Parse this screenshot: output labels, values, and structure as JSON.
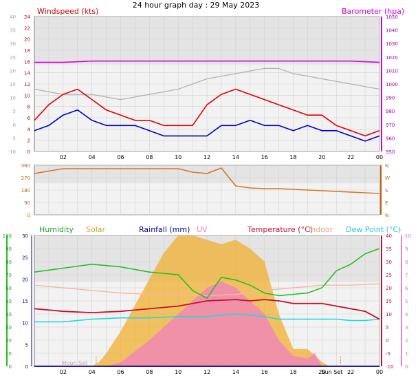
{
  "chart_data": [
    {
      "type": "line",
      "title": "24 hour graph day : 29 May 2023",
      "left_label": "Windspeed (kts)",
      "right_label": "Barometer (hpa)",
      "x_ticks": [
        "02",
        "04",
        "06",
        "08",
        "10",
        "12",
        "14",
        "16",
        "18",
        "20",
        "22",
        "00"
      ],
      "y_left_outer": {
        "range": [
          -10,
          40
        ],
        "ticks": [
          "-10",
          "-5",
          "0",
          "5",
          "10",
          "15",
          "20",
          "25",
          "30",
          "35",
          "40"
        ]
      },
      "y_left_inner": {
        "range": [
          0,
          24
        ],
        "ticks": [
          "0",
          "2",
          "4",
          "6",
          "8",
          "10",
          "12",
          "14",
          "16",
          "18",
          "20",
          "22",
          "24"
        ]
      },
      "y_right": {
        "range": [
          950,
          1050
        ],
        "ticks": [
          "950",
          "960",
          "970",
          "980",
          "990",
          "1000",
          "1010",
          "1020",
          "1030",
          "1040",
          "1050"
        ]
      },
      "series": [
        {
          "color": "#e00000",
          "x": [
            0,
            1,
            2,
            3,
            4,
            5,
            6,
            7,
            8,
            9,
            10,
            11,
            12,
            13,
            14,
            15,
            16,
            17,
            18,
            19,
            20,
            21,
            22,
            23,
            24
          ],
          "y": [
            4,
            7,
            9,
            10,
            8,
            6,
            5,
            4,
            4,
            3,
            3,
            3,
            7,
            9,
            10,
            9,
            8,
            7,
            6,
            5,
            5,
            3,
            2,
            1,
            2
          ]
        },
        {
          "color": "#0000c0",
          "x": [
            0,
            1,
            2,
            3,
            4,
            5,
            6,
            7,
            8,
            9,
            10,
            11,
            12,
            13,
            14,
            15,
            16,
            17,
            18,
            19,
            20,
            21,
            22,
            23,
            24
          ],
          "y": [
            2,
            3,
            5,
            6,
            4,
            3,
            3,
            3,
            2,
            1,
            1,
            1,
            1,
            3,
            3,
            4,
            3,
            3,
            2,
            3,
            2,
            2,
            1,
            0,
            1
          ]
        },
        {
          "color": "#b0b0b0",
          "x": [
            0,
            2,
            4,
            6,
            8,
            10,
            12,
            14,
            16,
            17,
            18,
            20,
            22,
            24
          ],
          "y": [
            10,
            9,
            9,
            8,
            9,
            10,
            12,
            13,
            14,
            14,
            13,
            12,
            11,
            10
          ]
        },
        {
          "color": "#e000e0",
          "x": [
            0,
            2,
            4,
            6,
            8,
            10,
            12,
            14,
            16,
            18,
            20,
            22,
            24
          ],
          "y": [
            1016,
            1016,
            1017,
            1017,
            1017,
            1017,
            1017,
            1017,
            1017,
            1017,
            1017,
            1017,
            1016
          ]
        }
      ]
    },
    {
      "type": "line",
      "y_left": {
        "range": [
          0,
          360
        ],
        "ticks": [
          "0",
          "90",
          "180",
          "270",
          "360"
        ]
      },
      "y_right_ticks": [
        "N",
        "E",
        "S",
        "W",
        "N"
      ],
      "series": [
        {
          "color": "#d07820",
          "x": [
            0,
            2,
            4,
            6,
            8,
            10,
            11,
            12,
            13,
            14,
            15,
            16,
            17,
            18,
            19,
            20,
            21,
            22,
            23,
            24
          ],
          "y": [
            300,
            335,
            335,
            335,
            335,
            335,
            310,
            300,
            340,
            210,
            195,
            190,
            190,
            185,
            180,
            175,
            170,
            165,
            160,
            155
          ]
        }
      ]
    },
    {
      "type": "area",
      "legend": [
        "Humidity",
        "Solar",
        "Rainfall (mm)",
        "UV",
        "Temperature (°C)",
        "Indoor",
        "Dew Point (°C)"
      ],
      "x_ticks": [
        "02",
        "04",
        "06",
        "08",
        "10",
        "12",
        "14",
        "16",
        "18",
        "20",
        "22",
        "00"
      ],
      "x_marks": [
        "Moon Set",
        "Sun Set"
      ],
      "y_humidity": {
        "range": [
          0,
          100
        ],
        "ticks": [
          "0",
          "10",
          "20",
          "30",
          "40",
          "50",
          "60",
          "70",
          "80",
          "90",
          "100"
        ]
      },
      "y_rain": {
        "range": [
          0,
          30
        ],
        "ticks": [
          "0",
          "5",
          "10",
          "15",
          "20",
          "25",
          "30"
        ]
      },
      "y_temp": {
        "range": [
          -10,
          40
        ],
        "ticks": [
          "-10",
          "-5",
          "0",
          "5",
          "10",
          "15",
          "20",
          "25",
          "30",
          "35",
          "40"
        ]
      },
      "y_uv": {
        "range": [
          0,
          10
        ],
        "ticks": [
          "0",
          "1",
          "2",
          "3",
          "4",
          "5",
          "6",
          "7",
          "8",
          "9",
          "10"
        ]
      },
      "series": [
        {
          "name": "Humidity",
          "color": "#20c020",
          "x": [
            0,
            2,
            4,
            6,
            8,
            10,
            11,
            12,
            13,
            14,
            15,
            16,
            17,
            18,
            19,
            20,
            21,
            22,
            23,
            24
          ],
          "y": [
            72,
            75,
            78,
            76,
            72,
            70,
            58,
            52,
            68,
            66,
            62,
            56,
            54,
            55,
            56,
            60,
            73,
            78,
            86,
            90
          ]
        },
        {
          "name": "Solar",
          "color": "#f0b030",
          "x": [
            0,
            4,
            4.5,
            5,
            6,
            7,
            8,
            9,
            10,
            11,
            12,
            13,
            14,
            15,
            16,
            17,
            18,
            19,
            20,
            20.5,
            24
          ],
          "y": [
            0,
            0,
            1,
            3,
            8,
            14,
            20,
            26,
            30,
            30,
            29,
            28,
            29,
            27,
            24,
            12,
            4,
            4,
            1,
            0,
            0
          ]
        },
        {
          "name": "UV",
          "color": "#f080c0",
          "x": [
            0,
            5,
            6,
            8,
            10,
            11,
            12,
            13,
            14,
            15,
            16,
            17,
            18,
            19,
            19.5,
            20,
            24
          ],
          "y": [
            0,
            0,
            0.3,
            2,
            4,
            5,
            6,
            6.5,
            6,
            5,
            4,
            2,
            0.8,
            0.6,
            1,
            0,
            0
          ]
        },
        {
          "name": "Temperature (°C)",
          "color": "#c01030",
          "x": [
            0,
            2,
            4,
            6,
            8,
            10,
            12,
            14,
            15,
            16,
            17,
            18,
            19,
            20,
            21,
            22,
            23,
            24
          ],
          "y": [
            12,
            11,
            10.5,
            11,
            12,
            13,
            15,
            15.5,
            15,
            15.5,
            15,
            14,
            14,
            14,
            13,
            12,
            11,
            8
          ]
        },
        {
          "name": "Indoor",
          "color": "#f4b8a0",
          "x": [
            0,
            2,
            4,
            6,
            8,
            10,
            12,
            14,
            16,
            18,
            20,
            22,
            24
          ],
          "y": [
            21,
            20,
            19,
            18,
            17.5,
            17.5,
            17,
            17.5,
            19,
            20,
            21,
            21,
            21.5
          ]
        },
        {
          "name": "Dew Point (°C)",
          "color": "#20d8e0",
          "x": [
            0,
            2,
            4,
            6,
            8,
            10,
            12,
            14,
            16,
            17,
            18,
            19,
            20,
            21,
            22,
            23,
            24
          ],
          "y": [
            7,
            7,
            8,
            8.5,
            8.5,
            9,
            9,
            10,
            9,
            8,
            8,
            8,
            8,
            8,
            7.5,
            7.5,
            8
          ]
        },
        {
          "name": "Rainfall (mm)",
          "color": "#0000a0",
          "x": [
            0,
            24
          ],
          "y": [
            0,
            0
          ]
        }
      ]
    }
  ]
}
